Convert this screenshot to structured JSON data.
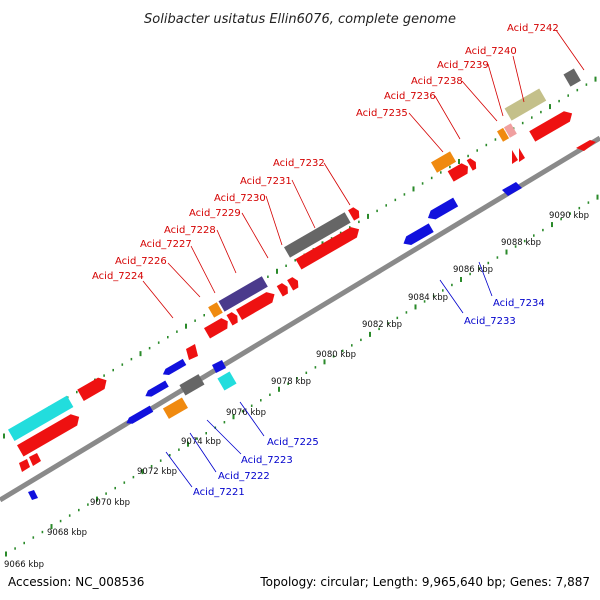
{
  "title": "Solibacter usitatus Ellin6076, complete genome",
  "accession": "Accession: NC_008536",
  "topology": "Topology: circular; Length: 9,965,640 bp; Genes: 7,887",
  "colors": {
    "backbone": "#8a8a8a",
    "ticks": "#2a8a2a",
    "label_red": "#d40000",
    "label_blue": "#0000cc",
    "red_gene": "#ee1111",
    "blue_gene": "#1111dd",
    "gray_gene": "#666666",
    "orange_gene": "#f08a10",
    "cyan_gene": "#22dddd",
    "purple_gene": "#4a3a8c",
    "khaki_gene": "#c4c08a",
    "pink_gene": "#f0a0a0"
  },
  "kbp_labels": [
    "9066 kbp",
    "9068 kbp",
    "9070 kbp",
    "9072 kbp",
    "9074 kbp",
    "9076 kbp",
    "9078 kbp",
    "9080 kbp",
    "9082 kbp",
    "9084 kbp",
    "9086 kbp",
    "9088 kbp",
    "9090 kbp"
  ],
  "red_labels": [
    "Acid_7224",
    "Acid_7226",
    "Acid_7227",
    "Acid_7228",
    "Acid_7229",
    "Acid_7230",
    "Acid_7231",
    "Acid_7232",
    "Acid_7235",
    "Acid_7236",
    "Acid_7238",
    "Acid_7239",
    "Acid_7240",
    "Acid_7242"
  ],
  "blue_labels": [
    "Acid_7221",
    "Acid_7222",
    "Acid_7223",
    "Acid_7225",
    "Acid_7233",
    "Acid_7234"
  ]
}
